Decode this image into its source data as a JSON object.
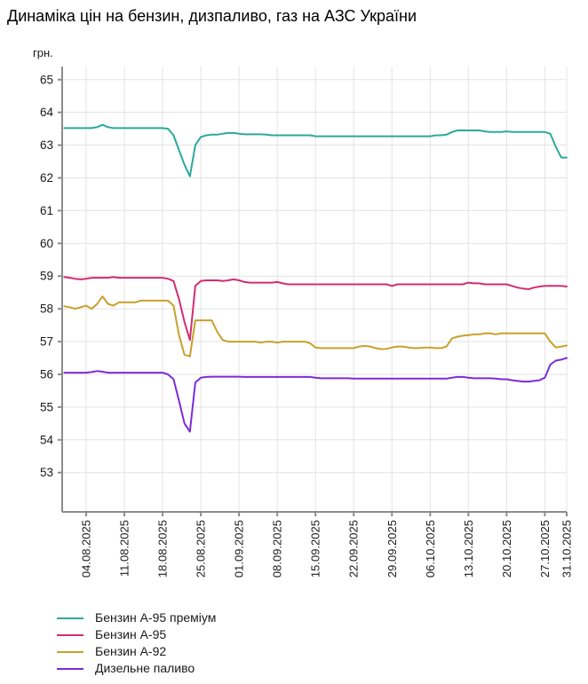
{
  "title": "Динаміка цін на бензин, дизпаливо, газ на АЗС України",
  "chart_data": {
    "type": "line",
    "title": "Динаміка цін на бензин, дизпаливо, газ на АЗС України",
    "ylabel": "грн.",
    "xlabel": "",
    "grid": true,
    "legend_position": "bottom-left",
    "ylim": [
      51.8,
      65.4
    ],
    "y_ticks": [
      53,
      54,
      55,
      56,
      57,
      58,
      59,
      60,
      61,
      62,
      63,
      64,
      65
    ],
    "x_start_date": "31.07.2025",
    "x_end_date": "31.10.2025",
    "x_tick_labels": [
      "04.08.2025",
      "11.08.2025",
      "18.08.2025",
      "25.08.2025",
      "01.09.2025",
      "08.09.2025",
      "15.09.2025",
      "22.09.2025",
      "29.09.2025",
      "06.10.2025",
      "13.10.2025",
      "20.10.2025",
      "27.10.2025",
      "31.10.2025"
    ],
    "x_tick_indices": [
      4,
      11,
      18,
      25,
      32,
      39,
      46,
      53,
      60,
      67,
      74,
      81,
      88,
      92
    ],
    "axis_color": "#8c8c8c",
    "grid_color": "#e3e3e3",
    "tick_text_color": "#1a1a1a",
    "series": [
      {
        "name": "Бензин А-95 преміум",
        "color": "#2ba99b",
        "values": [
          63.52,
          63.52,
          63.52,
          63.52,
          63.52,
          63.52,
          63.55,
          63.62,
          63.55,
          63.52,
          63.52,
          63.52,
          63.52,
          63.52,
          63.52,
          63.52,
          63.52,
          63.52,
          63.52,
          63.5,
          63.3,
          62.85,
          62.4,
          62.05,
          63.0,
          63.25,
          63.3,
          63.32,
          63.32,
          63.35,
          63.37,
          63.37,
          63.35,
          63.33,
          63.33,
          63.33,
          63.33,
          63.32,
          63.3,
          63.3,
          63.3,
          63.3,
          63.3,
          63.3,
          63.3,
          63.3,
          63.27,
          63.27,
          63.27,
          63.27,
          63.27,
          63.27,
          63.27,
          63.27,
          63.27,
          63.27,
          63.27,
          63.27,
          63.27,
          63.27,
          63.27,
          63.27,
          63.27,
          63.27,
          63.27,
          63.27,
          63.27,
          63.27,
          63.3,
          63.3,
          63.32,
          63.4,
          63.45,
          63.45,
          63.45,
          63.45,
          63.45,
          63.42,
          63.4,
          63.4,
          63.4,
          63.42,
          63.4,
          63.4,
          63.4,
          63.4,
          63.4,
          63.4,
          63.4,
          63.35,
          62.95,
          62.62,
          62.62
        ]
      },
      {
        "name": "Бензин А-95",
        "color": "#d22d72",
        "values": [
          58.97,
          58.95,
          58.92,
          58.9,
          58.92,
          58.95,
          58.95,
          58.95,
          58.95,
          58.97,
          58.95,
          58.95,
          58.95,
          58.95,
          58.95,
          58.95,
          58.95,
          58.95,
          58.95,
          58.92,
          58.85,
          58.3,
          57.6,
          57.05,
          58.7,
          58.85,
          58.87,
          58.87,
          58.87,
          58.85,
          58.87,
          58.9,
          58.87,
          58.82,
          58.8,
          58.8,
          58.8,
          58.8,
          58.8,
          58.82,
          58.78,
          58.75,
          58.75,
          58.75,
          58.75,
          58.75,
          58.75,
          58.75,
          58.75,
          58.75,
          58.75,
          58.75,
          58.75,
          58.75,
          58.75,
          58.75,
          58.75,
          58.75,
          58.75,
          58.75,
          58.7,
          58.75,
          58.75,
          58.75,
          58.75,
          58.75,
          58.75,
          58.75,
          58.75,
          58.75,
          58.75,
          58.75,
          58.75,
          58.75,
          58.8,
          58.78,
          58.78,
          58.75,
          58.75,
          58.75,
          58.75,
          58.75,
          58.7,
          58.65,
          58.62,
          58.6,
          58.65,
          58.68,
          58.7,
          58.7,
          58.7,
          58.7,
          58.68
        ]
      },
      {
        "name": "Бензин А-92",
        "color": "#c8a02a",
        "values": [
          58.08,
          58.05,
          58.0,
          58.05,
          58.1,
          58.0,
          58.15,
          58.38,
          58.15,
          58.1,
          58.2,
          58.2,
          58.2,
          58.2,
          58.25,
          58.25,
          58.25,
          58.25,
          58.25,
          58.25,
          58.1,
          57.2,
          56.6,
          56.55,
          57.65,
          57.65,
          57.65,
          57.65,
          57.3,
          57.05,
          57.0,
          57.0,
          57.0,
          57.0,
          57.0,
          57.0,
          56.97,
          57.0,
          57.0,
          56.97,
          57.0,
          57.0,
          57.0,
          57.0,
          57.0,
          56.95,
          56.82,
          56.8,
          56.8,
          56.8,
          56.8,
          56.8,
          56.8,
          56.8,
          56.85,
          56.87,
          56.85,
          56.8,
          56.77,
          56.78,
          56.82,
          56.85,
          56.85,
          56.82,
          56.8,
          56.8,
          56.82,
          56.82,
          56.8,
          56.8,
          56.85,
          57.1,
          57.15,
          57.18,
          57.2,
          57.22,
          57.22,
          57.25,
          57.25,
          57.22,
          57.25,
          57.25,
          57.25,
          57.25,
          57.25,
          57.25,
          57.25,
          57.25,
          57.25,
          57.0,
          56.82,
          56.85,
          56.88
        ]
      },
      {
        "name": "Дизельне паливо",
        "color": "#7d2bd8",
        "values": [
          56.05,
          56.05,
          56.05,
          56.05,
          56.05,
          56.07,
          56.1,
          56.08,
          56.05,
          56.05,
          56.05,
          56.05,
          56.05,
          56.05,
          56.05,
          56.05,
          56.05,
          56.05,
          56.05,
          56.0,
          55.85,
          55.2,
          54.5,
          54.25,
          55.75,
          55.9,
          55.92,
          55.93,
          55.93,
          55.93,
          55.93,
          55.93,
          55.93,
          55.92,
          55.92,
          55.92,
          55.92,
          55.92,
          55.92,
          55.92,
          55.92,
          55.92,
          55.92,
          55.92,
          55.92,
          55.92,
          55.9,
          55.88,
          55.88,
          55.88,
          55.88,
          55.88,
          55.88,
          55.87,
          55.87,
          55.87,
          55.87,
          55.87,
          55.87,
          55.87,
          55.87,
          55.87,
          55.87,
          55.87,
          55.87,
          55.87,
          55.87,
          55.87,
          55.87,
          55.87,
          55.87,
          55.9,
          55.92,
          55.92,
          55.9,
          55.88,
          55.88,
          55.88,
          55.88,
          55.87,
          55.85,
          55.85,
          55.82,
          55.8,
          55.78,
          55.78,
          55.8,
          55.82,
          55.9,
          56.3,
          56.42,
          56.45,
          56.5
        ]
      }
    ]
  }
}
